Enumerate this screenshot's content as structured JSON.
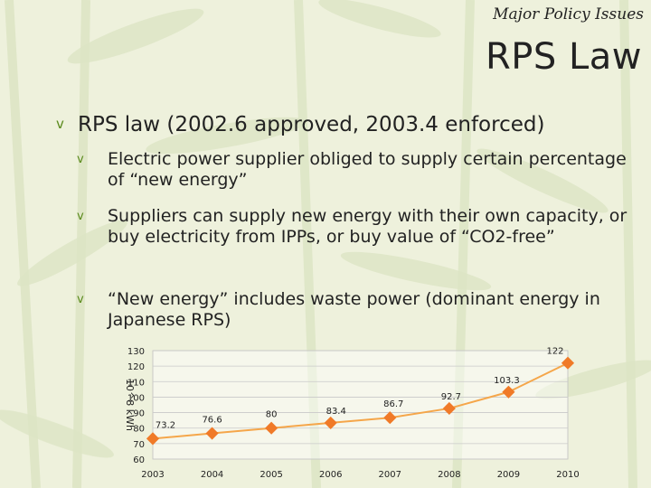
{
  "slide": {
    "kicker": "Major Policy Issues",
    "title": "RPS Law",
    "bullet_main": "RPS law (2002.6 approved, 2003.4 enforced)",
    "sub_bullets": [
      "Electric power supplier obliged to supply certain percentage of “new energy”",
      "Suppliers can supply new energy with their own capacity, or buy electricity from IPPs, or buy value of “CO2-free”",
      "“New energy” includes waste power (dominant energy in Japanese RPS)"
    ],
    "marker_glyph": "v",
    "colors": {
      "accent": "#5a8a1c",
      "line": "#f5a64a",
      "marker": "#f07a28",
      "background": "#ecefd8"
    }
  },
  "chart_data": {
    "type": "line",
    "title": "",
    "xlabel": "",
    "ylabel": "10^8 kWh",
    "categories": [
      "2003",
      "2004",
      "2005",
      "2006",
      "2007",
      "2008",
      "2009",
      "2010"
    ],
    "series": [
      {
        "values": [
          73.2,
          76.6,
          80,
          83.4,
          86.7,
          92.7,
          103.3,
          122
        ]
      }
    ],
    "data_labels": [
      "73.2",
      "76.6",
      "80",
      "83.4",
      "86.7",
      "92.7",
      "103.3",
      "122"
    ],
    "ylim": [
      60,
      130
    ],
    "yticks": [
      60,
      70,
      80,
      90,
      100,
      110,
      120,
      130
    ],
    "grid": true,
    "legend": "none"
  }
}
